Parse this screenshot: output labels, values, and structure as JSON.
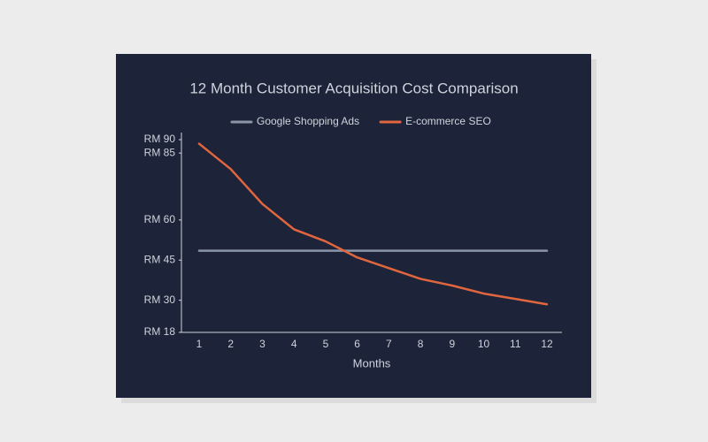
{
  "chart_data": {
    "type": "line",
    "title": "12 Month Customer Acquisition Cost Comparison",
    "x_label": "Months",
    "categories": [
      "1",
      "2",
      "3",
      "4",
      "5",
      "6",
      "7",
      "8",
      "9",
      "10",
      "11",
      "12"
    ],
    "series": [
      {
        "name": "Google Shopping Ads",
        "color": "#8a95a8",
        "values": [
          48.5,
          48.5,
          48.5,
          48.5,
          48.5,
          48.5,
          48.5,
          48.5,
          48.5,
          48.5,
          48.5,
          48.5
        ]
      },
      {
        "name": "E-commerce SEO",
        "color": "#e0663f",
        "values": [
          88.5,
          79,
          66,
          56.5,
          52,
          46,
          42,
          38,
          35.5,
          32.5,
          30.5,
          28.5
        ]
      }
    ],
    "ylim": [
      18,
      90
    ],
    "yticks": [
      {
        "value": 18,
        "label": "RM 18"
      },
      {
        "value": 30,
        "label": "RM 30"
      },
      {
        "value": 45,
        "label": "RM 45"
      },
      {
        "value": 60,
        "label": "RM 60"
      },
      {
        "value": 85,
        "label": "RM 85"
      },
      {
        "value": 90,
        "label": "RM 90"
      }
    ],
    "grid": false,
    "legend": "top"
  }
}
